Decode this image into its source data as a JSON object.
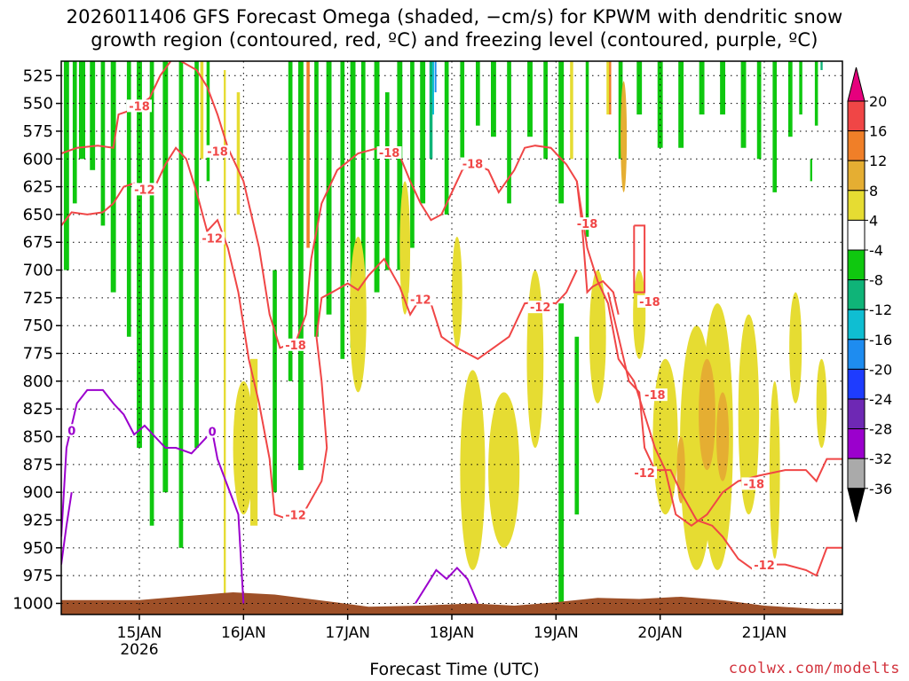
{
  "title_line1": "2026011406 GFS Forecast Omega (shaded, −cm/s) for KPWM with dendritic snow",
  "title_line2": "growth region (contoured, red, ºC) and freezing level (contoured, purple, ºC)",
  "xlabel": "Forecast Time (UTC)",
  "credit": "coolwx.com/modelts",
  "colors": {
    "dgz": "#f04646",
    "freezing": "#9b00cd",
    "ground": "#9e5028",
    "grid": "#000000"
  },
  "chart_data": {
    "type": "heatmap",
    "y_axis": {
      "label": "",
      "ticks": [
        "525",
        "550",
        "575",
        "600",
        "625",
        "650",
        "675",
        "700",
        "725",
        "750",
        "775",
        "800",
        "825",
        "850",
        "875",
        "900",
        "925",
        "950",
        "975",
        "1000"
      ],
      "range": [
        1010,
        512
      ]
    },
    "x_axis": {
      "ticks": [
        "15JAN",
        "16JAN",
        "17JAN",
        "18JAN",
        "19JAN",
        "20JAN",
        "21JAN"
      ],
      "year_label": "2026",
      "range_days": [
        14.25,
        21.75
      ]
    },
    "colorbar": {
      "labels": [
        "20",
        "16",
        "12",
        "8",
        "4",
        "-4",
        "-8",
        "-12",
        "-16",
        "-20",
        "-24",
        "-28",
        "-32",
        "-36"
      ],
      "colors": [
        "#f04646",
        "#f07f28",
        "#e5ae32",
        "#e6dc32",
        "#ffffff",
        "#0fc80f",
        "#0fb478",
        "#0fbed2",
        "#1e8cf0",
        "#1e3cff",
        "#6e28b4",
        "#9b00cd",
        "#aaaaaa",
        "#000000"
      ],
      "top_color": "#e6007d"
    },
    "dgz_contour_labels": [
      {
        "text": "-18",
        "day": 15.0,
        "p": 553
      },
      {
        "text": "-18",
        "day": 15.75,
        "p": 594
      },
      {
        "text": "-12",
        "day": 15.05,
        "p": 628
      },
      {
        "text": "-12",
        "day": 15.7,
        "p": 672
      },
      {
        "text": "-18",
        "day": 16.5,
        "p": 768
      },
      {
        "text": "-12",
        "day": 16.5,
        "p": 921
      },
      {
        "text": "-18",
        "day": 17.4,
        "p": 595
      },
      {
        "text": "-12",
        "day": 17.7,
        "p": 727
      },
      {
        "text": "-18",
        "day": 18.2,
        "p": 605
      },
      {
        "text": "-12",
        "day": 18.85,
        "p": 734
      },
      {
        "text": "-18",
        "day": 19.3,
        "p": 659
      },
      {
        "text": "-18",
        "day": 19.9,
        "p": 729
      },
      {
        "text": "-18",
        "day": 19.95,
        "p": 813
      },
      {
        "text": "-12",
        "day": 19.85,
        "p": 883
      },
      {
        "text": "-18",
        "day": 20.9,
        "p": 893
      },
      {
        "text": "-12",
        "day": 21.0,
        "p": 966
      }
    ],
    "freezing_contour_labels": [
      {
        "text": "0",
        "day": 14.35,
        "p": 845
      },
      {
        "text": "0",
        "day": 15.7,
        "p": 846
      }
    ]
  }
}
